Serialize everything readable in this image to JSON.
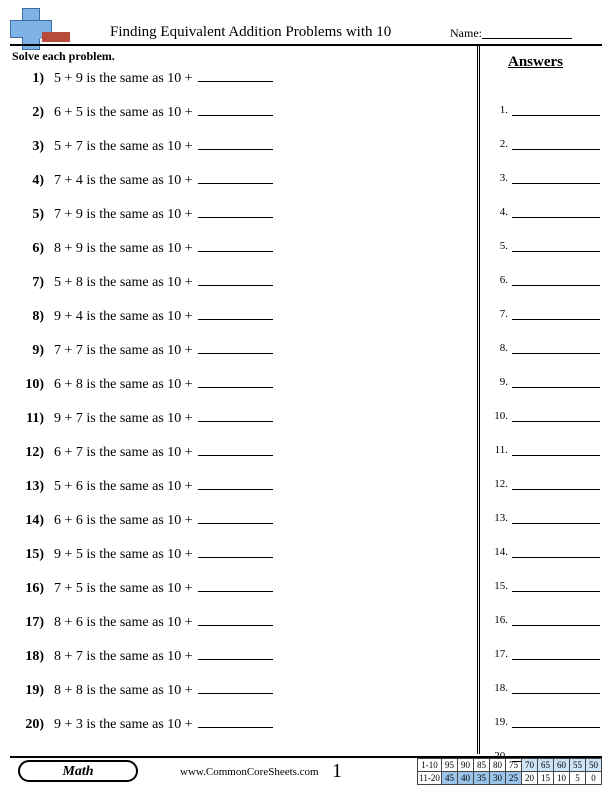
{
  "title": "Finding Equivalent Addition Problems with 10",
  "name_label": "Name:",
  "instructions": "Solve each problem.",
  "answers_header": "Answers",
  "problems": [
    {
      "n": "1)",
      "a": 5,
      "b": 9
    },
    {
      "n": "2)",
      "a": 6,
      "b": 5
    },
    {
      "n": "3)",
      "a": 5,
      "b": 7
    },
    {
      "n": "4)",
      "a": 7,
      "b": 4
    },
    {
      "n": "5)",
      "a": 7,
      "b": 9
    },
    {
      "n": "6)",
      "a": 8,
      "b": 9
    },
    {
      "n": "7)",
      "a": 5,
      "b": 8
    },
    {
      "n": "8)",
      "a": 9,
      "b": 4
    },
    {
      "n": "9)",
      "a": 7,
      "b": 7
    },
    {
      "n": "10)",
      "a": 6,
      "b": 8
    },
    {
      "n": "11)",
      "a": 9,
      "b": 7
    },
    {
      "n": "12)",
      "a": 6,
      "b": 7
    },
    {
      "n": "13)",
      "a": 5,
      "b": 6
    },
    {
      "n": "14)",
      "a": 6,
      "b": 6
    },
    {
      "n": "15)",
      "a": 9,
      "b": 5
    },
    {
      "n": "16)",
      "a": 7,
      "b": 5
    },
    {
      "n": "17)",
      "a": 8,
      "b": 6
    },
    {
      "n": "18)",
      "a": 8,
      "b": 7
    },
    {
      "n": "19)",
      "a": 8,
      "b": 8
    },
    {
      "n": "20)",
      "a": 9,
      "b": 3
    }
  ],
  "connector": " is the same as 10 + ",
  "answer_count": 20,
  "footer": {
    "subject": "Math",
    "site": "www.CommonCoreSheets.com",
    "page_number": "1"
  },
  "score_grid": {
    "row_labels": [
      "1-10",
      "11-20"
    ],
    "row1": [
      "95",
      "90",
      "85",
      "80",
      "75",
      "70",
      "65",
      "60",
      "55",
      "50"
    ],
    "row2": [
      "45",
      "40",
      "35",
      "30",
      "25",
      "20",
      "15",
      "10",
      "5",
      "0"
    ],
    "row1_shade": [
      "",
      "",
      "",
      "",
      "",
      "shade1",
      "shade1",
      "shade1",
      "shade1",
      "shade1"
    ],
    "row2_shade": [
      "shade2",
      "shade2",
      "shade2",
      "shade2",
      "shade2",
      "",
      "",
      "",
      "",
      ""
    ],
    "colors": {
      "shade1": "#cfe3f7",
      "shade2": "#9bc4ea",
      "border": "#444444"
    }
  },
  "icon_colors": {
    "plus_fill": "#7fb3e6",
    "plus_border": "#3a6ea5",
    "red_bar": "#b84a3a"
  }
}
